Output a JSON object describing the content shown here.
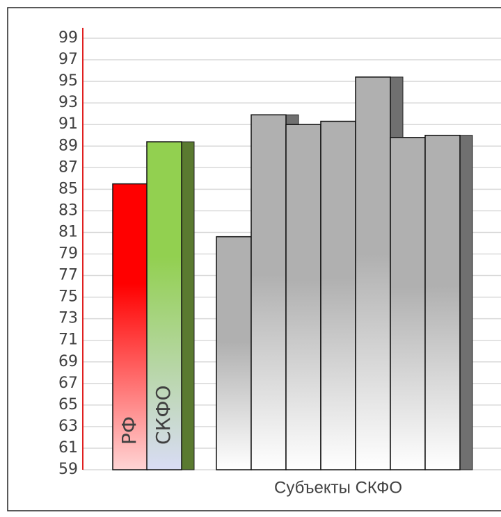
{
  "chart_data": {
    "type": "bar",
    "xlabel": "Субъекты СКФО",
    "categories": [
      "РФ",
      "СКФО",
      null,
      null,
      null,
      null,
      null,
      null,
      null
    ],
    "values": [
      85.5,
      89.4,
      80.6,
      91.9,
      91.0,
      91.3,
      95.4,
      89.8,
      90.0
    ],
    "colors": [
      "#ff0000",
      "#92d050",
      "#b0b0b0",
      "#b0b0b0",
      "#b0b0b0",
      "#b0b0b0",
      "#b0b0b0",
      "#b0b0b0",
      "#b0b0b0"
    ],
    "gradient_end_colors": [
      "#ffd4d4",
      "#d9dcf5",
      "#ffffff",
      "#ffffff",
      "#ffffff",
      "#ffffff",
      "#ffffff",
      "#ffffff",
      "#ffffff"
    ],
    "ylim": [
      59,
      99
    ],
    "yticks": [
      59,
      61,
      63,
      65,
      67,
      69,
      71,
      73,
      75,
      77,
      79,
      81,
      83,
      85,
      87,
      89,
      91,
      93,
      95,
      97,
      99
    ],
    "grid": true
  }
}
